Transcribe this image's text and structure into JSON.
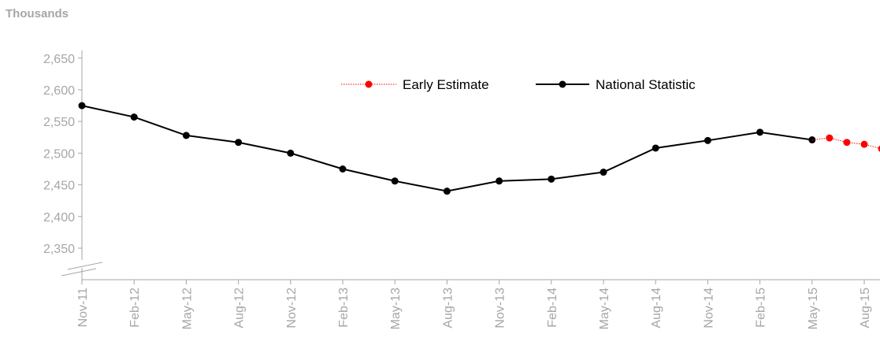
{
  "unit_label": "Thousands",
  "colors": {
    "axis": "#a6a6a6",
    "national": "#000000",
    "early": "#ff0000"
  },
  "chart_data": {
    "type": "line",
    "ylabel": "Thousands",
    "ylim": [
      2300,
      2660
    ],
    "yticks": [
      2350,
      2400,
      2450,
      2500,
      2550,
      2600,
      2650
    ],
    "ytick_labels": [
      "2,350",
      "2,400",
      "2,450",
      "2,500",
      "2,550",
      "2,600",
      "2,650"
    ],
    "axis_break": true,
    "categories": [
      "Nov-11",
      "Feb-12",
      "May-12",
      "Aug-12",
      "Nov-12",
      "Feb-13",
      "May-13",
      "Aug-13",
      "Nov-13",
      "Feb-14",
      "May-14",
      "Aug-14",
      "Nov-14",
      "Feb-15",
      "May-15",
      "Aug-15"
    ],
    "legend": {
      "position": "top-center",
      "entries": [
        "Early Estimate",
        "National Statistic"
      ]
    },
    "series": [
      {
        "name": "National Statistic",
        "style": "solid",
        "x": [
          "Nov-11",
          "Feb-12",
          "May-12",
          "Aug-12",
          "Nov-12",
          "Feb-13",
          "May-13",
          "Aug-13",
          "Nov-13",
          "Feb-14",
          "May-14",
          "Aug-14",
          "Nov-14",
          "Feb-15",
          "May-15"
        ],
        "values": [
          2575,
          2557,
          2528,
          2517,
          2500,
          2475,
          2456,
          2440,
          2456,
          2459,
          2470,
          2508,
          2520,
          2533,
          2521
        ]
      },
      {
        "name": "Early Estimate",
        "style": "dotted",
        "x": [
          "May-15",
          "Jun-15",
          "Jul-15",
          "Aug-15",
          "Sep-15"
        ],
        "values": [
          2521,
          2524,
          2517,
          2514,
          2507
        ]
      }
    ]
  }
}
